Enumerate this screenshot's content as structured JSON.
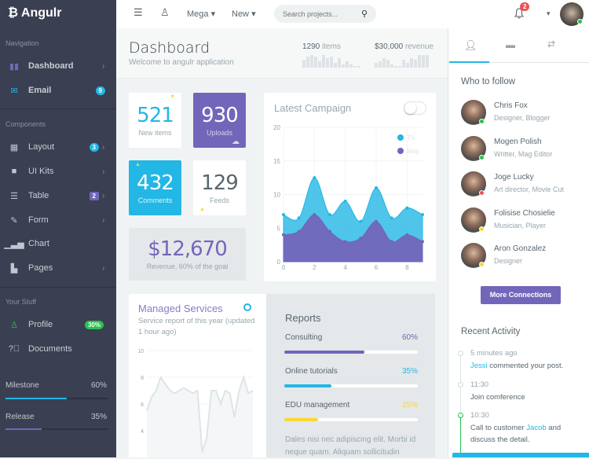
{
  "app": {
    "name": "Angulr"
  },
  "sidebar": {
    "sections": [
      "Navigation",
      "Components",
      "Your Stuff"
    ],
    "nav": [
      {
        "label": "Dashboard",
        "icon": "bar-chart-icon"
      },
      {
        "label": "Email",
        "icon": "envelope-icon",
        "badge": "9"
      }
    ],
    "components": [
      {
        "label": "Layout",
        "icon": "grid-icon",
        "badge": "3"
      },
      {
        "label": "UI Kits",
        "icon": "briefcase-icon"
      },
      {
        "label": "Table",
        "icon": "list-icon",
        "badge": "2"
      },
      {
        "label": "Form",
        "icon": "edit-icon"
      },
      {
        "label": "Chart",
        "icon": "signal-icon"
      },
      {
        "label": "Pages",
        "icon": "file-icon"
      }
    ],
    "stuff": [
      {
        "label": "Profile",
        "icon": "user-icon",
        "badge": "30%"
      },
      {
        "label": "Documents",
        "icon": "question-icon"
      }
    ],
    "progress": [
      {
        "label": "Milestone",
        "value": "60%",
        "fraction": 0.6,
        "color": "#23b7e5"
      },
      {
        "label": "Release",
        "value": "35%",
        "fraction": 0.35,
        "color": "#7266ba"
      }
    ]
  },
  "topbar": {
    "mega": "Mega",
    "new": "New",
    "search_placeholder": "Search projects...",
    "notifications": "2"
  },
  "header": {
    "title": "Dashboard",
    "subtitle": "Welcome to angulr application",
    "stat1": {
      "value": "1290",
      "label": "items",
      "spark": [
        5,
        7,
        8,
        7,
        4,
        8,
        6,
        7,
        3,
        6,
        2,
        4,
        2,
        1,
        1
      ]
    },
    "stat2": {
      "value": "$30,000",
      "label": "revenue",
      "spark": [
        3,
        4,
        6,
        5,
        2,
        1,
        1,
        5,
        3,
        6,
        5,
        8,
        8,
        8
      ]
    }
  },
  "tiles": {
    "new_items": {
      "value": "521",
      "label": "New items"
    },
    "uploads": {
      "value": "930",
      "label": "Uploads"
    },
    "comments": {
      "value": "432",
      "label": "Comments"
    },
    "feeds": {
      "value": "129",
      "label": "Feeds"
    },
    "revenue": {
      "value": "$12,670",
      "label": "Revenue, 60% of the goal"
    }
  },
  "campaign": {
    "title": "Latest Campaign"
  },
  "chart_data": [
    {
      "type": "area",
      "x": [
        0,
        1,
        2,
        3,
        4,
        5,
        6,
        7,
        8,
        9
      ],
      "xticks": [
        "0",
        "2",
        "4",
        "6",
        "8"
      ],
      "yticks": [
        "0",
        "5",
        "10",
        "15",
        "20"
      ],
      "ylim": [
        0,
        20
      ],
      "legend": "top-right",
      "grid": true,
      "series": [
        {
          "name": "TV",
          "color": "#23b7e5",
          "values": [
            7,
            6.5,
            12.5,
            7,
            9,
            6,
            11,
            6.5,
            8,
            7
          ]
        },
        {
          "name": "Mag",
          "color": "#7266ba",
          "values": [
            4,
            4.5,
            7,
            4.5,
            3,
            3.5,
            6,
            3,
            4,
            3
          ]
        }
      ]
    },
    {
      "type": "area",
      "yticks": [
        "10",
        "8",
        "6",
        "4"
      ],
      "ylim": [
        2,
        10
      ],
      "grid": true,
      "series": [
        {
          "color": "#dee5e7",
          "values": [
            5.5,
            6.5,
            7,
            8,
            7.5,
            7,
            6.8,
            7,
            7.2,
            7,
            6.8,
            7,
            2.4,
            3.5,
            7,
            7,
            6,
            7,
            6.8,
            5,
            7,
            8,
            6.8,
            7
          ]
        }
      ]
    }
  ],
  "services": {
    "title": "Managed Services",
    "subtitle": "Service report of this year (updated 1 hour ago)"
  },
  "reports": {
    "title": "Reports",
    "items": [
      {
        "label": "Consulting",
        "value": "60%",
        "fraction": 0.6,
        "color": "#7266ba"
      },
      {
        "label": "Online tutorials",
        "value": "35%",
        "fraction": 0.35,
        "color": "#23b7e5"
      },
      {
        "label": "EDU management",
        "value": "25%",
        "fraction": 0.25,
        "color": "#fad733"
      }
    ],
    "text": "Dales nisi nec adipiscing elit. Morbi id neque quam. Aliquam sollicitudin"
  },
  "right": {
    "who_title": "Who to follow",
    "people": [
      {
        "name": "Chris Fox",
        "role": "Designer, Blogger",
        "status": "#27c24c"
      },
      {
        "name": "Mogen Polish",
        "role": "Writter, Mag Editor",
        "status": "#27c24c"
      },
      {
        "name": "Joge Lucky",
        "role": "Art director, Movie Cut",
        "status": "#f05050"
      },
      {
        "name": "Folisise Chosielie",
        "role": "Musician, Player",
        "status": "#fad733"
      },
      {
        "name": "Aron Gonzalez",
        "role": "Designer",
        "status": "#fad733"
      }
    ],
    "more": "More Connections",
    "activity_title": "Recent Activity",
    "activity": [
      {
        "time": "5 minutes ago",
        "link": "Jessi",
        "text": " commented your post."
      },
      {
        "time": "11:30",
        "text": "Join comference"
      },
      {
        "time": "10:30",
        "pre": "Call to customer ",
        "link": "Jacob",
        "text": " and discuss the detail."
      }
    ]
  }
}
